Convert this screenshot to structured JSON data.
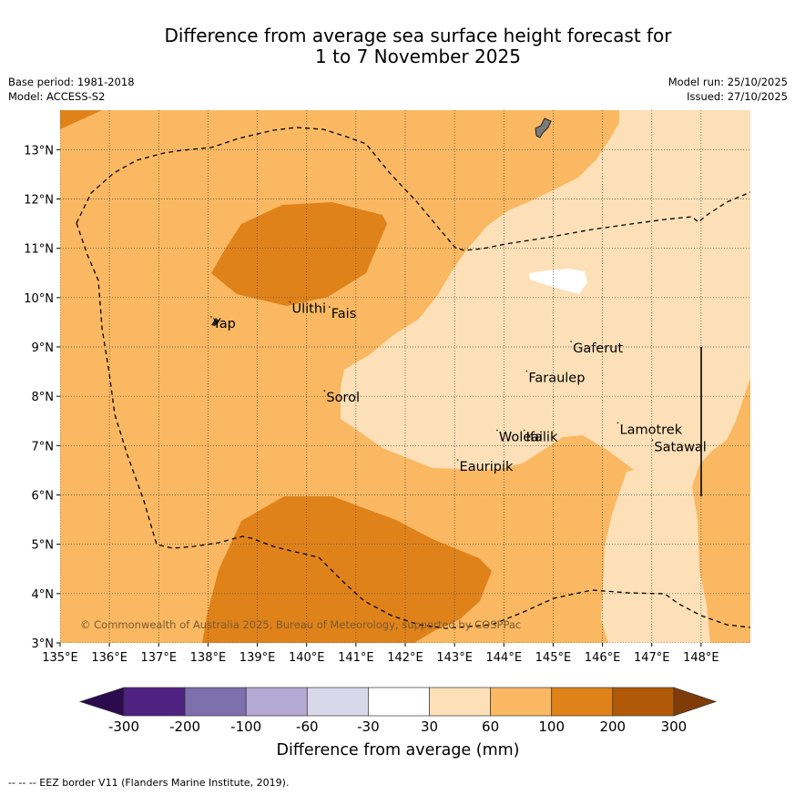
{
  "title": {
    "line1": "Difference from average sea surface height forecast for",
    "line2": "1 to 7 November 2025"
  },
  "meta": {
    "base_period": "Base period: 1981-2018",
    "model": "Model: ACCESS-S2",
    "model_run": "Model run: 25/10/2025",
    "issued": "Issued: 27/10/2025"
  },
  "map": {
    "copyright": "© Commonwealth of Australia 2025, Bureau of Meteorology, supported by COSPPac",
    "x_ticks": [
      "135°E",
      "136°E",
      "137°E",
      "138°E",
      "139°E",
      "140°E",
      "141°E",
      "142°E",
      "143°E",
      "144°E",
      "145°E",
      "146°E",
      "147°E",
      "148°E"
    ],
    "y_ticks": [
      "3°N",
      "4°N",
      "5°N",
      "6°N",
      "7°N",
      "8°N",
      "9°N",
      "10°N",
      "11°N",
      "12°N",
      "13°N"
    ],
    "lon_range": [
      135,
      149
    ],
    "lat_range": [
      3,
      13.8
    ],
    "places": [
      {
        "name": "Yap",
        "lon": 138.1,
        "lat": 9.5
      },
      {
        "name": "Ulithi",
        "lon": 139.7,
        "lat": 9.8
      },
      {
        "name": "Fais",
        "lon": 140.5,
        "lat": 9.7
      },
      {
        "name": "Sorol",
        "lon": 140.4,
        "lat": 8.0
      },
      {
        "name": "Gaferut",
        "lon": 145.4,
        "lat": 9.0
      },
      {
        "name": "Faraulep",
        "lon": 144.5,
        "lat": 8.4
      },
      {
        "name": "Woleai",
        "lon": 143.9,
        "lat": 7.2
      },
      {
        "name": "Ifalik",
        "lon": 144.45,
        "lat": 7.2
      },
      {
        "name": "Lamotrek",
        "lon": 146.35,
        "lat": 7.35
      },
      {
        "name": "Satawal",
        "lon": 147.05,
        "lat": 7.0
      },
      {
        "name": "Eauripik",
        "lon": 143.1,
        "lat": 6.6
      }
    ]
  },
  "colorbar": {
    "title": "Difference from average (mm)",
    "tick_labels": [
      "-300",
      "-200",
      "-100",
      "-60",
      "-30",
      "30",
      "60",
      "100",
      "200",
      "300"
    ],
    "colors": [
      "#4f2282",
      "#7e70ad",
      "#b3a9d2",
      "#d9d8eb",
      "#ffffff",
      "#fde0b7",
      "#fab862",
      "#e0821a",
      "#b15908"
    ],
    "under_color": "#2c0a4d",
    "over_color": "#7f3c06"
  },
  "footnote": "-- -- -- EEZ border V11 (Flanders Marine Institute, 2019)."
}
